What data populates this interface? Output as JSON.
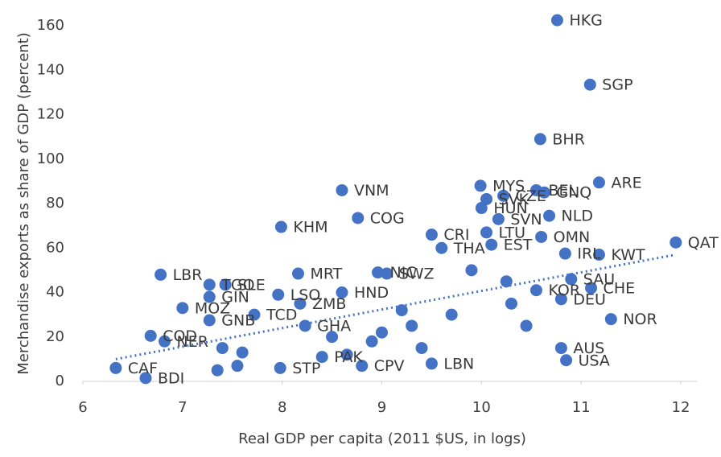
{
  "chart_data": {
    "type": "scatter",
    "ylabel": "Merchandise exports as share of GDP (percent)",
    "xlabel": "Real GDP per capita (2011 $US, in logs)",
    "color": "#4472c4",
    "xlim": [
      6,
      12
    ],
    "xticks": [
      6,
      7,
      8,
      9,
      10,
      11,
      12
    ],
    "ylim": [
      0,
      170
    ],
    "yticks": [
      0,
      20,
      40,
      60,
      80,
      100,
      120,
      140,
      160
    ],
    "labels": [
      "HKG",
      "SGP",
      "BHR",
      "ARE",
      "QAT",
      "VNM",
      "KHM",
      "COG",
      "MYS",
      "BEL",
      "GNQ",
      "SVK",
      "CZE",
      "HUN",
      "NLD",
      "SVN",
      "LTU",
      "OMN",
      "CRI",
      "THA",
      "EST",
      "IRL",
      "KWT",
      "LBR",
      "MRT",
      "NIC",
      "SWZ",
      "TGO",
      "SLE",
      "GIN",
      "LSO",
      "HND",
      "MOZ",
      "ZMB",
      "TCD",
      "GNB",
      "COD",
      "NER",
      "GHA",
      "SAU",
      "CHE",
      "DEU",
      "KOR",
      "NOR",
      "USA",
      "AUS",
      "CAF",
      "BDI",
      "STP",
      "CPV",
      "LBN",
      "PAK",
      null,
      null,
      null,
      null,
      null,
      null,
      null,
      null,
      null,
      null,
      null,
      null,
      null,
      null,
      null,
      null
    ],
    "x": [
      10.76,
      11.09,
      10.59,
      11.18,
      11.95,
      8.6,
      7.99,
      8.76,
      9.99,
      10.55,
      10.63,
      10.05,
      10.22,
      10.0,
      10.68,
      10.17,
      10.05,
      10.6,
      9.5,
      9.6,
      10.1,
      10.84,
      11.18,
      6.78,
      8.16,
      8.96,
      9.05,
      7.27,
      7.43,
      7.27,
      7.96,
      8.6,
      7.0,
      8.18,
      7.72,
      7.27,
      6.68,
      6.82,
      8.23,
      10.9,
      11.1,
      10.8,
      10.55,
      11.3,
      10.85,
      10.8,
      6.33,
      6.63,
      7.98,
      8.8,
      9.5,
      8.4,
      7.4,
      7.6,
      8.5,
      9.3,
      9.7,
      10.3,
      10.45,
      9.0,
      8.9,
      9.4,
      7.35,
      7.55,
      10.25,
      9.9,
      8.65,
      9.2
    ],
    "values": [
      162.5,
      133.5,
      109,
      89.5,
      62.5,
      86,
      69.5,
      73.5,
      88,
      86,
      85,
      82,
      83.5,
      78,
      74.5,
      73,
      67,
      65,
      66,
      60,
      61.5,
      57.5,
      57,
      48,
      48.5,
      49,
      48.5,
      43.5,
      43.5,
      38,
      39,
      40,
      33,
      35,
      30,
      27.5,
      20.5,
      18,
      25,
      46,
      42,
      37,
      41,
      28,
      9.5,
      15,
      6,
      1.5,
      6,
      7,
      8,
      11,
      15,
      13,
      20,
      25,
      30,
      35,
      25,
      22,
      18,
      15,
      5,
      7,
      45,
      50,
      12,
      32
    ],
    "trendline": {
      "x": [
        6.33,
        11.95
      ],
      "y": [
        10,
        57
      ]
    }
  }
}
